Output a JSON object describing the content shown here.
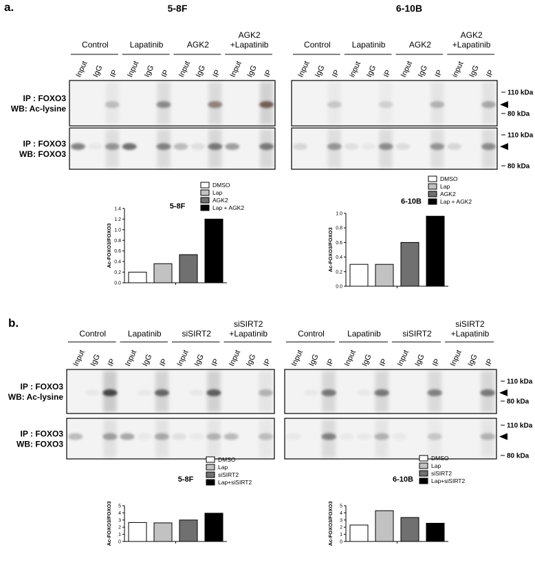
{
  "figure": {
    "panels": [
      {
        "letter": "a.",
        "groups_left": [
          "Control",
          "Lapatinib",
          "AGK2",
          "AGK2\n+Lapatinib"
        ],
        "groups_right": [
          "Control",
          "Lapatinib",
          "AGK2",
          "AGK2\n+Lapatinib"
        ],
        "lanes_left": [
          "Input",
          "IgG",
          "IP",
          "Input",
          "IgG",
          "IP",
          "Input",
          "IgG",
          "IP",
          "Input",
          "IgG",
          "IP"
        ],
        "lanes_right": [
          "Input",
          "IgG",
          "IP",
          "input",
          "IgG",
          "IP",
          "Input",
          "IgG",
          "IP",
          "input",
          "IgG",
          "IP"
        ]
      },
      {
        "letter": "b.",
        "groups_left": [
          "Control",
          "Lapatinib",
          "siSIRT2",
          "siSIRT2\n+Lapatinib"
        ],
        "groups_right": [
          "Control",
          "Lapatinib",
          "siSIRT2",
          "siSIRT2\n+Lapatinib"
        ],
        "lanes_left": [
          "Input",
          "IgG",
          "IP",
          "Input",
          "IgG",
          "IP",
          "Input",
          "IgG",
          "IP",
          "Input",
          "IgG",
          "IP"
        ],
        "lanes_right": [
          "Input",
          "IgG",
          "IP",
          "Input",
          "IgG",
          "IP",
          "Input",
          "IgG",
          "IP",
          "Input",
          "IgG",
          "IP"
        ]
      }
    ],
    "cell_lines": [
      "5-8F",
      "6-10B"
    ],
    "blot_rows": [
      {
        "label_line1": "IP : FOXO3",
        "label_line2": "WB: Ac-lysine"
      },
      {
        "label_line1": "IP : FOXO3",
        "label_line2": "WB: FOXO3"
      }
    ],
    "markers": [
      "110 kDa",
      "80 kDa"
    ],
    "colors": {
      "white": "#ffffff",
      "light_gray": "#c2c2c2",
      "dark_gray": "#707070",
      "black": "#000000"
    }
  },
  "chart_data": [
    {
      "type": "bar",
      "panel": "a",
      "title": "5-8F",
      "ylabel": "Ac-FOXO3/FOXO3",
      "ylim": [
        0,
        1.4
      ],
      "yticks": [
        "0.0",
        "0.2",
        "0.4",
        "0.6",
        "0.8",
        "1.0",
        "1.2",
        "1.4"
      ],
      "categories": [
        "DMSO",
        "Lap",
        "AGK2",
        "Lap + AGK2"
      ],
      "values": [
        0.2,
        0.36,
        0.53,
        1.2
      ],
      "legend": [
        "DMSO",
        "Lap",
        "AGK2",
        "Lap + AGK2"
      ],
      "legend_placement": "top"
    },
    {
      "type": "bar",
      "panel": "a",
      "title": "6-10B",
      "ylabel": "Ac-FOXO3/FOXO3",
      "ylim": [
        0,
        1.0
      ],
      "yticks": [
        "0.0",
        "0.2",
        "0.4",
        "0.6",
        "0.8",
        "1.0"
      ],
      "categories": [
        "DMSO",
        "Lap",
        "AGK2",
        "Lap + AGK2"
      ],
      "values": [
        0.3,
        0.3,
        0.6,
        0.96
      ],
      "legend": [
        "DMSO",
        "Lap",
        "AGK2",
        "Lap + AGK2"
      ],
      "legend_placement": "top"
    },
    {
      "type": "bar",
      "panel": "b",
      "title": "5-8F",
      "ylabel": "Ac-FOXO3/FOXO3",
      "ylim": [
        0,
        5
      ],
      "yticks": [
        "0",
        "1",
        "2",
        "3",
        "4",
        "5"
      ],
      "categories": [
        "DMSO",
        "Lap",
        "siSIRT2",
        "Lap+siSIRT2"
      ],
      "values": [
        2.65,
        2.6,
        3.0,
        3.95
      ],
      "legend": [
        "DMSO",
        "Lap",
        "siSIRT2",
        "Lap+siSIRT2"
      ],
      "legend_placement": "top"
    },
    {
      "type": "bar",
      "panel": "b",
      "title": "6-10B",
      "ylabel": "Ac-FOXO3/FOXO3",
      "ylim": [
        0,
        5
      ],
      "yticks": [
        "0",
        "1",
        "2",
        "3",
        "4",
        "5"
      ],
      "categories": [
        "DMSO",
        "Lap",
        "siSIRT2",
        "Lap+siSIRT2"
      ],
      "values": [
        2.3,
        4.3,
        3.35,
        2.55
      ],
      "legend": [
        "DMSO",
        "Lap",
        "siSIRT2",
        "Lap+siSIRT2"
      ],
      "legend_placement": "top"
    }
  ]
}
